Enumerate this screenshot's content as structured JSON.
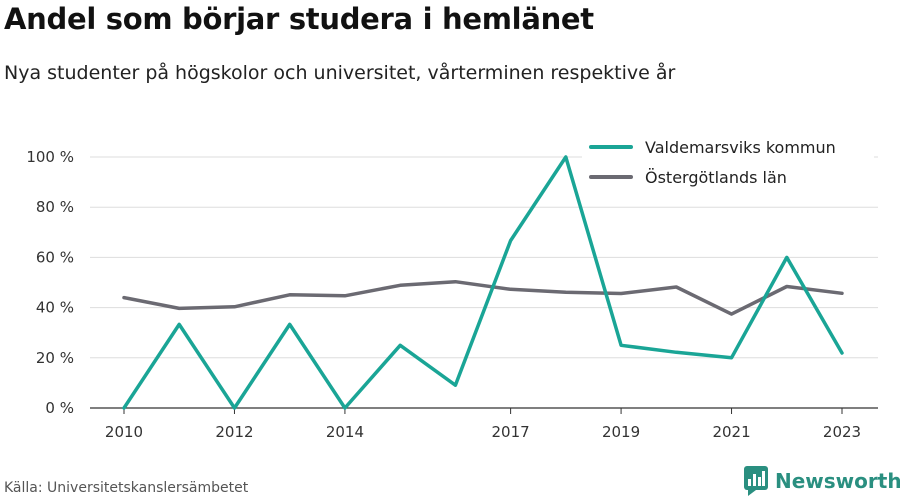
{
  "header": {
    "title": "Andel som börjar studera i hemlänet",
    "subtitle": "Nya studenter på högskolor och universitet, vårterminen respektive år"
  },
  "footer": {
    "source": "Källa: Universitetskanslersämbetet",
    "brand": "Newsworthy",
    "brand_color": "#2a8f80"
  },
  "chart_data": {
    "type": "line",
    "x": [
      2010,
      2011,
      2012,
      2013,
      2014,
      2015,
      2016,
      2017,
      2018,
      2019,
      2020,
      2021,
      2022,
      2023
    ],
    "x_ticks": [
      2010,
      2012,
      2014,
      2017,
      2019,
      2021,
      2023
    ],
    "y_ticks": [
      0,
      20,
      40,
      60,
      80,
      100
    ],
    "y_tick_suffix": " %",
    "ylim": [
      0,
      100
    ],
    "grid": true,
    "legend_position": "top-right",
    "series": [
      {
        "name": "Valdemarsviks kommun",
        "color": "#1aa596",
        "values": [
          0,
          33.3,
          0,
          33.3,
          0,
          25,
          9.1,
          66.7,
          100,
          25,
          22.2,
          20,
          60,
          21.9
        ]
      },
      {
        "name": "Östergötlands län",
        "color": "#6b6a72",
        "values": [
          44,
          39.7,
          40.3,
          45.1,
          44.7,
          48.9,
          50.3,
          47.3,
          46.1,
          45.6,
          48.2,
          37.4,
          48.4,
          45.7
        ]
      }
    ]
  }
}
